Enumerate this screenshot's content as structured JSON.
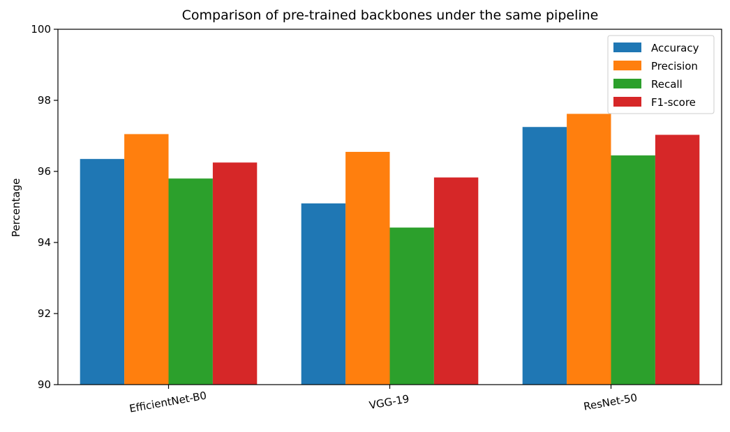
{
  "chart_data": {
    "type": "bar",
    "title": "Comparison of pre-trained backbones under the same pipeline",
    "xlabel": "",
    "ylabel": "Percentage",
    "categories": [
      "EfficientNet-B0",
      "VGG-19",
      "ResNet-50"
    ],
    "ylim": [
      90,
      100
    ],
    "yticks": [
      90,
      92,
      94,
      96,
      98,
      100
    ],
    "grid": false,
    "legend_position": "top-right",
    "series": [
      {
        "name": "Accuracy",
        "color": "#1f77b4",
        "values": [
          96.35,
          95.1,
          97.25
        ]
      },
      {
        "name": "Precision",
        "color": "#ff7f0e",
        "values": [
          97.05,
          96.55,
          97.62
        ]
      },
      {
        "name": "Recall",
        "color": "#2ca02c",
        "values": [
          95.8,
          94.42,
          96.45
        ]
      },
      {
        "name": "F1-score",
        "color": "#d62728",
        "values": [
          96.25,
          95.83,
          97.03
        ]
      }
    ]
  }
}
